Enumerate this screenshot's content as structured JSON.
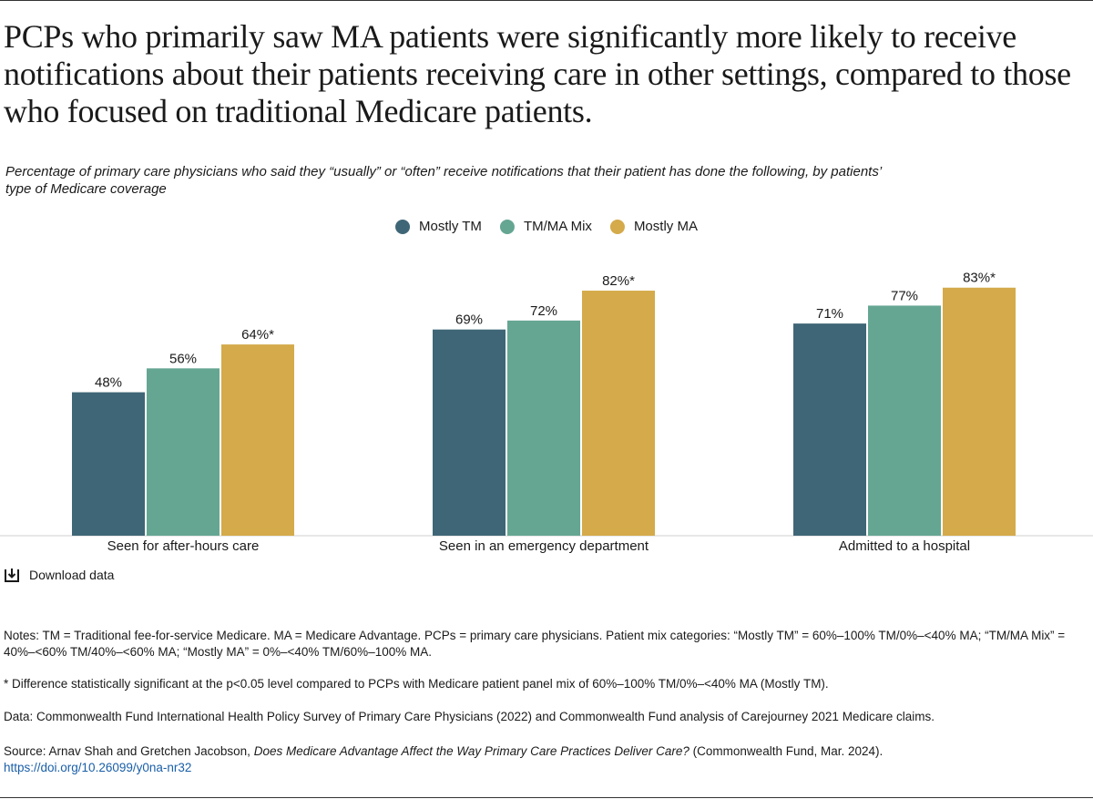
{
  "chart_data": {
    "type": "bar",
    "title": "PCPs who primarily saw MA patients were significantly more likely to receive notifications about their patients receiving care in other settings, compared to those who focused on traditional Medicare patients.",
    "subtitle": "Percentage of primary care physicians who said they “usually” or “often” receive notifications that their patient has done the following, by patients’ type of Medicare coverage",
    "categories": [
      "Seen for after-hours care",
      "Seen in an emergency department",
      "Admitted to a hospital"
    ],
    "series": [
      {
        "name": "Mostly TM",
        "color": "#3f6676",
        "values": [
          48,
          69,
          71
        ],
        "value_labels": [
          "48%",
          "69%",
          "71%"
        ]
      },
      {
        "name": "TM/MA Mix",
        "color": "#65a692",
        "values": [
          56,
          72,
          77
        ],
        "value_labels": [
          "56%",
          "72%",
          "77%"
        ]
      },
      {
        "name": "Mostly MA",
        "color": "#d4aa4a",
        "values": [
          64,
          82,
          83
        ],
        "value_labels": [
          "64%*",
          "82%*",
          "83%*"
        ]
      }
    ]
  },
  "download": "Download data",
  "notes": [
    "Notes: TM = Traditional fee-for-service Medicare. MA = Medicare Advantage. PCPs = primary care physicians. Patient mix categories: “Mostly TM” = 60%–100% TM/0%–<40% MA; “TM/MA Mix” = 40%–<60% TM/40%–<60% MA; “Mostly MA” = 0%–<40% TM/60%–100% MA.",
    "* Difference statistically significant at the p<0.05 level compared to PCPs with Medicare patient panel mix of 60%–100% TM/0%–<40% MA (Mostly TM).",
    "Data: Commonwealth Fund International Health Policy Survey of Primary Care Physicians (2022) and Commonwealth Fund analysis of Carejourney 2021 Medicare claims."
  ],
  "source": {
    "lead": "Source: Arnav Shah and Gretchen Jacobson,",
    "work": "Does Medicare Advantage Affect the Way Primary Care Practices Deliver Care?",
    "publisher": "(Commonwealth Fund, Mar. 2024).",
    "url": "https://doi.org/10.26099/y0na-nr32"
  }
}
